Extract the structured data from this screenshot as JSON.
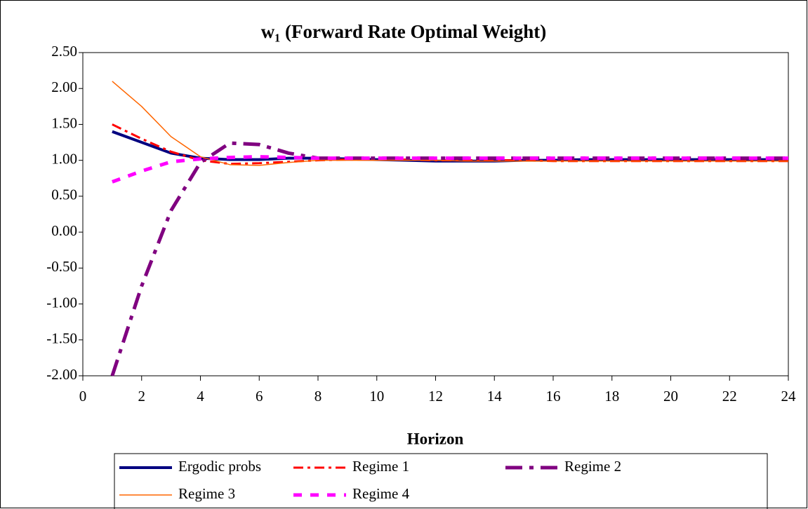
{
  "chart_data": {
    "type": "line",
    "title": "w₁ (Forward Rate Optimal Weight)",
    "x_label": "Horizon",
    "x": [
      1,
      2,
      3,
      4,
      5,
      6,
      7,
      8,
      9,
      10,
      11,
      12,
      13,
      14,
      15,
      16,
      17,
      18,
      19,
      20,
      21,
      22,
      23,
      24
    ],
    "series": [
      {
        "name": "Ergodic probs",
        "color": "#000080",
        "values": [
          1.4,
          1.25,
          1.1,
          1.03,
          1.01,
          1.01,
          1.03,
          1.03,
          1.02,
          1.01,
          1.0,
          0.99,
          0.99,
          0.99,
          1.0,
          1.0,
          1.01,
          1.01,
          1.01,
          1.01,
          1.01,
          1.01,
          1.01,
          1.01
        ]
      },
      {
        "name": "Regime 1",
        "color": "#ff0000",
        "values": [
          1.5,
          1.3,
          1.12,
          1.0,
          0.95,
          0.96,
          0.98,
          1.0,
          1.01,
          1.01,
          1.01,
          1.0,
          1.0,
          1.0,
          1.0,
          0.99,
          0.99,
          0.99,
          0.99,
          0.99,
          0.99,
          0.99,
          0.99,
          0.99
        ]
      },
      {
        "name": "Regime 2",
        "color": "#800080",
        "values": [
          -2.0,
          -0.75,
          0.3,
          0.97,
          1.24,
          1.22,
          1.1,
          1.03,
          1.03,
          1.03,
          1.03,
          1.03,
          1.03,
          1.03,
          1.03,
          1.03,
          1.03,
          1.03,
          1.03,
          1.03,
          1.03,
          1.03,
          1.03,
          1.03
        ]
      },
      {
        "name": "Regime 3",
        "color": "#ff6600",
        "values": [
          2.1,
          1.75,
          1.33,
          1.05,
          0.94,
          0.93,
          0.97,
          1.0,
          1.0,
          1.0,
          1.0,
          1.0,
          0.99,
          0.99,
          0.99,
          0.99,
          0.99,
          0.99,
          0.99,
          0.99,
          0.99,
          0.99,
          0.99,
          0.99
        ]
      },
      {
        "name": "Regime 4",
        "color": "#ff00ff",
        "values": [
          0.7,
          0.85,
          0.98,
          1.02,
          1.04,
          1.05,
          1.04,
          1.03,
          1.03,
          1.03,
          1.03,
          1.03,
          1.03,
          1.03,
          1.03,
          1.03,
          1.03,
          1.03,
          1.03,
          1.03,
          1.03,
          1.03,
          1.03,
          1.03
        ]
      }
    ],
    "xlim": [
      0,
      24
    ],
    "xticks": [
      0,
      2,
      4,
      6,
      8,
      10,
      12,
      14,
      16,
      18,
      20,
      22,
      24
    ],
    "ylim": [
      -2,
      2.5
    ],
    "yticks": [
      {
        "value": -2,
        "label": "-2.00"
      },
      {
        "value": -1.5,
        "label": "-1.50"
      },
      {
        "value": -1,
        "label": "-1.00"
      },
      {
        "value": -0.5,
        "label": "-0.50"
      },
      {
        "value": 0,
        "label": "0.00"
      },
      {
        "value": 0.5,
        "label": "0.50"
      },
      {
        "value": 1,
        "label": "1.00"
      },
      {
        "value": 1.5,
        "label": "1.50"
      },
      {
        "value": 2,
        "label": "2.00"
      },
      {
        "value": 2.5,
        "label": "2.50"
      }
    ],
    "grid": false,
    "legend": "bottom"
  }
}
